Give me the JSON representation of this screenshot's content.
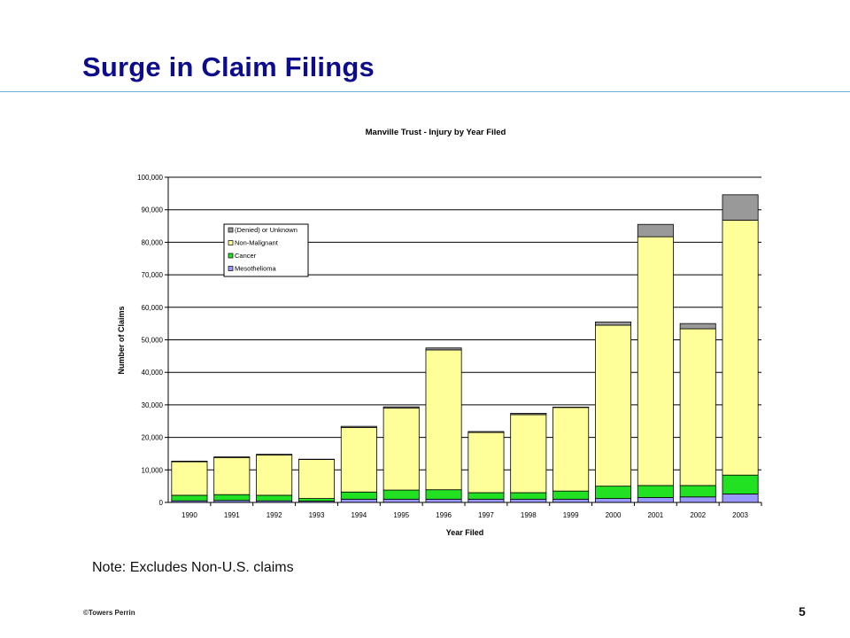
{
  "slide": {
    "title": "Surge in Claim Filings",
    "note": "Note: Excludes Non-U.S. claims",
    "footer": "©Towers Perrin",
    "page_number": "5"
  },
  "chart_data": {
    "type": "bar",
    "stacked": true,
    "title": "Manville Trust - Injury by Year Filed",
    "xlabel": "Year Filed",
    "ylabel": "Number of Claims",
    "ylim": [
      0,
      100000
    ],
    "yticks": [
      0,
      10000,
      20000,
      30000,
      40000,
      50000,
      60000,
      70000,
      80000,
      90000,
      100000
    ],
    "ytick_labels": [
      "0",
      "10,000",
      "20,000",
      "30,000",
      "40,000",
      "50,000",
      "60,000",
      "70,000",
      "80,000",
      "90,000",
      "100,000"
    ],
    "grid": true,
    "legend_position": "top-left",
    "categories": [
      "1990",
      "1991",
      "1992",
      "1993",
      "1994",
      "1995",
      "1996",
      "1997",
      "1998",
      "1999",
      "2000",
      "2001",
      "2002",
      "2003"
    ],
    "series": [
      {
        "name": "Mesothelioma",
        "color": "#9999ff",
        "values": [
          500,
          600,
          500,
          400,
          1000,
          1000,
          1000,
          1000,
          1000,
          1000,
          1200,
          1500,
          1700,
          2600
        ]
      },
      {
        "name": "Cancer",
        "color": "#22e022",
        "values": [
          1700,
          1800,
          1700,
          800,
          2200,
          2800,
          2900,
          2000,
          2000,
          2500,
          3800,
          3700,
          3500,
          5800
        ]
      },
      {
        "name": "Non-Malignant",
        "color": "#ffff99",
        "values": [
          10300,
          11400,
          12400,
          12000,
          19800,
          25200,
          43000,
          18500,
          24000,
          25700,
          49500,
          76500,
          48200,
          78400
        ]
      },
      {
        "name": "(Denied) or Unknown",
        "color": "#999999",
        "values": [
          200,
          200,
          200,
          100,
          400,
          400,
          600,
          300,
          400,
          100,
          1000,
          3800,
          1600,
          7800
        ]
      }
    ]
  }
}
